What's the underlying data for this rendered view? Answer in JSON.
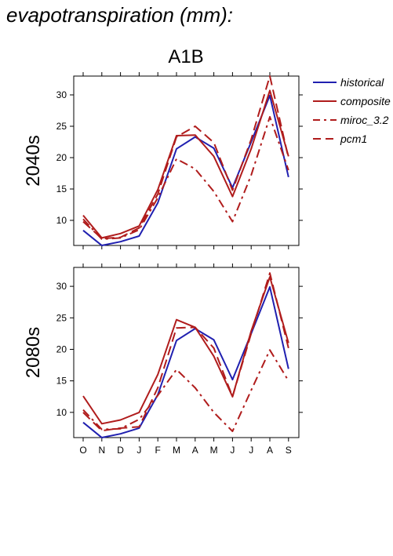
{
  "page_title": "evapotranspiration (mm):",
  "chart_data": {
    "type": "line",
    "title": "A1B",
    "categories": [
      "O",
      "N",
      "D",
      "J",
      "F",
      "M",
      "A",
      "M",
      "J",
      "J",
      "A",
      "S"
    ],
    "ylim": [
      6,
      33
    ],
    "yticks": [
      10,
      15,
      20,
      25,
      30
    ],
    "grid": false,
    "legend_position": "right",
    "legend": [
      {
        "key": "historical",
        "label": "historical",
        "color": "#2020b0",
        "dash": "solid"
      },
      {
        "key": "composite",
        "label": "composite",
        "color": "#b01c1c",
        "dash": "solid"
      },
      {
        "key": "miroc",
        "label": "miroc_3.2",
        "color": "#b01c1c",
        "dash": "dashdot"
      },
      {
        "key": "pcm1",
        "label": "pcm1",
        "color": "#b01c1c",
        "dash": "dashed"
      }
    ],
    "panels": [
      {
        "label": "2040s",
        "series": [
          {
            "key": "historical",
            "values": [
              8.4,
              6.0,
              6.6,
              7.5,
              12.8,
              21.4,
              23.3,
              21.5,
              15.2,
              22.5,
              29.9,
              16.9
            ]
          },
          {
            "key": "composite",
            "values": [
              10.8,
              7.2,
              7.9,
              9.1,
              14.9,
              23.5,
              23.6,
              20.2,
              13.8,
              21.4,
              30.7,
              20.2
            ]
          },
          {
            "key": "miroc",
            "values": [
              10.2,
              7.0,
              7.2,
              8.5,
              13.6,
              19.8,
              18.2,
              14.6,
              9.8,
              17.2,
              26.5,
              18.0
            ]
          },
          {
            "key": "pcm1",
            "values": [
              9.8,
              7.1,
              7.3,
              8.8,
              14.2,
              23.3,
              25.0,
              22.4,
              14.8,
              22.9,
              33.0,
              19.9
            ]
          }
        ]
      },
      {
        "label": "2080s",
        "series": [
          {
            "key": "historical",
            "values": [
              8.4,
              6.0,
              6.6,
              7.5,
              12.8,
              21.4,
              23.3,
              21.5,
              15.2,
              22.5,
              29.9,
              16.9
            ]
          },
          {
            "key": "composite",
            "values": [
              12.6,
              8.2,
              8.8,
              10.0,
              16.0,
              24.7,
              23.5,
              18.9,
              12.5,
              22.9,
              31.5,
              21.0
            ]
          },
          {
            "key": "miroc",
            "values": [
              10.4,
              7.3,
              7.4,
              8.9,
              12.7,
              16.8,
              13.9,
              10.0,
              7.0,
              13.5,
              19.9,
              15.0
            ]
          },
          {
            "key": "pcm1",
            "values": [
              10.0,
              7.1,
              7.5,
              7.7,
              13.9,
              23.4,
              23.5,
              20.2,
              12.5,
              22.5,
              32.1,
              20.2
            ]
          }
        ]
      }
    ]
  }
}
